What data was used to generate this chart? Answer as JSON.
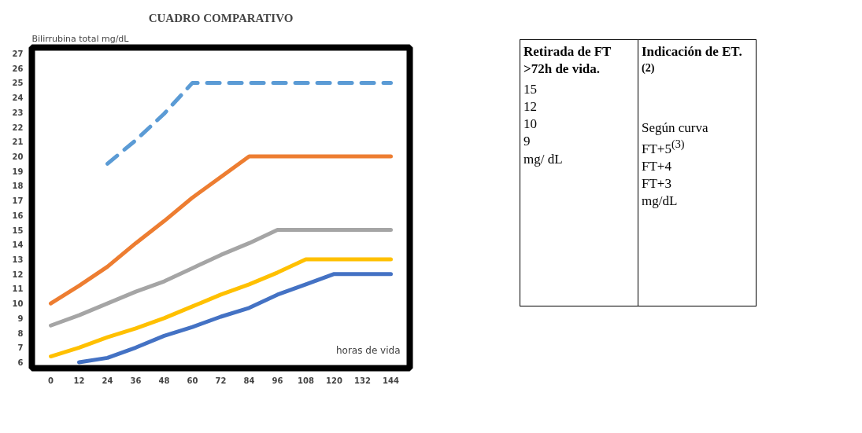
{
  "chart_data": {
    "type": "line",
    "title": "CUADRO COMPARATIVO",
    "xlabel": "horas de vida",
    "ylabel": "Bilirrubina total mg/dL",
    "x": [
      0,
      12,
      24,
      36,
      48,
      60,
      72,
      84,
      96,
      108,
      120,
      132,
      144
    ],
    "xlim": [
      -8,
      152
    ],
    "xticks": [
      0,
      12,
      24,
      36,
      48,
      60,
      72,
      84,
      96,
      108,
      120,
      132,
      144
    ],
    "ylim": [
      5.6,
      27.4
    ],
    "yticks": [
      6,
      7,
      8,
      9,
      10,
      11,
      12,
      13,
      14,
      15,
      16,
      17,
      18,
      19,
      20,
      21,
      22,
      23,
      24,
      25,
      26,
      27
    ],
    "grid": false,
    "marker": "none",
    "series": [
      {
        "color": "#4472c4",
        "values": [
          null,
          6.0,
          6.3,
          7.0,
          7.8,
          8.4,
          9.1,
          9.7,
          10.6,
          11.3,
          12,
          12,
          12
        ]
      },
      {
        "color": "#ffc000",
        "values": [
          6.4,
          7.0,
          7.7,
          8.3,
          9.0,
          9.8,
          10.6,
          11.3,
          12.1,
          13,
          13,
          13,
          13
        ]
      },
      {
        "color": "#a5a5a5",
        "values": [
          8.5,
          9.2,
          10.0,
          10.8,
          11.5,
          12.4,
          13.3,
          14.1,
          15,
          15,
          15,
          15,
          15
        ]
      },
      {
        "color": "#ed7d31",
        "values": [
          10,
          11.2,
          12.5,
          14.1,
          15.6,
          17.2,
          18.6,
          20,
          20,
          20,
          20,
          20,
          20
        ]
      },
      {
        "color": "#5b9bd5",
        "line_style": "dashed",
        "values": [
          null,
          null,
          19.5,
          21.1,
          22.9,
          25,
          25,
          25,
          25,
          25,
          25,
          25,
          25
        ]
      }
    ],
    "annotations": [
      "Retirada de FT >72h de vida.",
      "15\n12\n10\n9\nmg/ dL",
      "Indicación de ET.$^{(2)}$",
      "Según curva\nFT+5$^{(3)}$\nFT+4\nFT+3\nmg/dL"
    ]
  }
}
